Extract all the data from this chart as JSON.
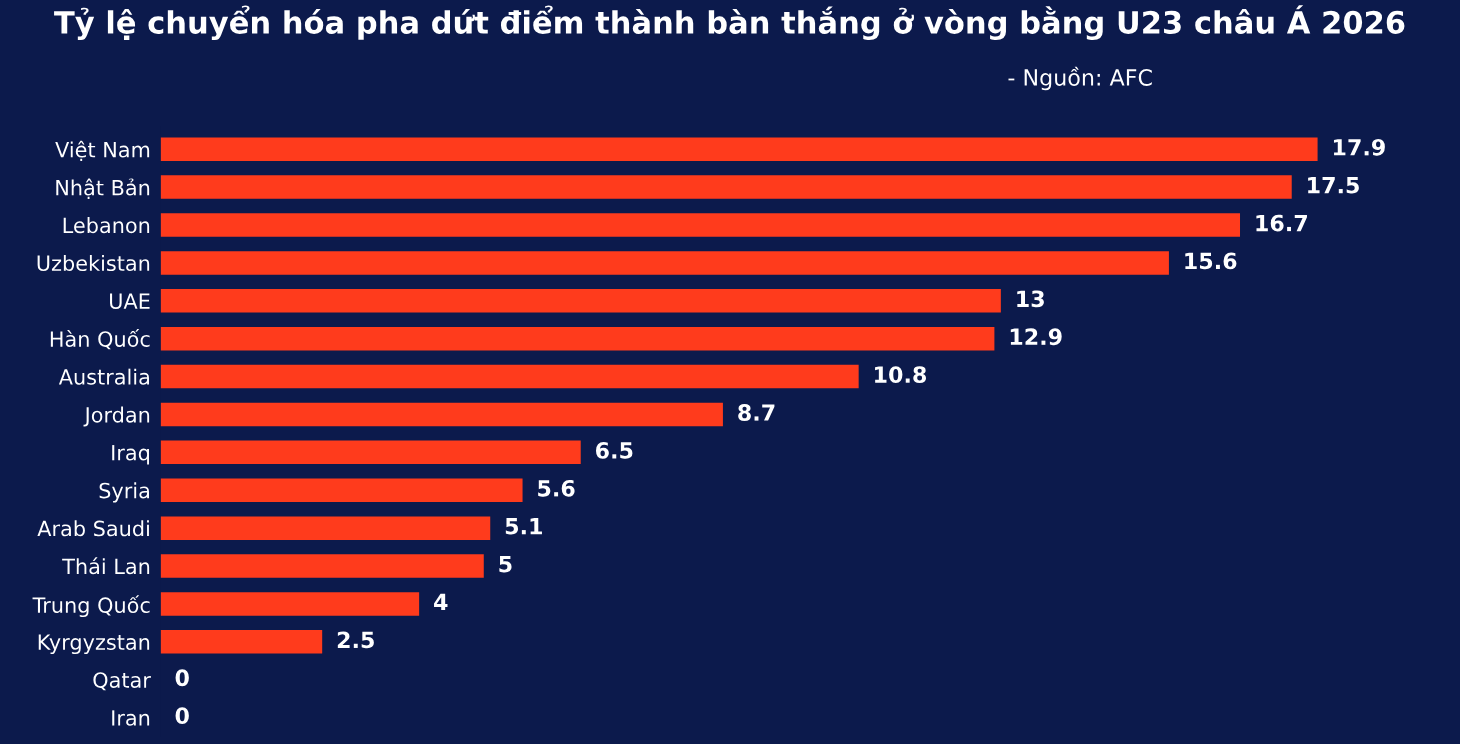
{
  "chart_data": {
    "type": "bar",
    "orientation": "horizontal",
    "title": "Tỷ lệ chuyển hóa pha dứt điểm thành bàn thắng ở vòng bằng U23 châu Á 2026",
    "annotations": [
      "- Nguồn: AFC"
    ],
    "categories": [
      "Việt Nam",
      "Nhật Bản",
      "Lebanon",
      "Uzbekistan",
      "UAE",
      "Hàn Quốc",
      "Australia",
      "Jordan",
      "Iraq",
      "Syria",
      "Arab Saudi",
      "Thái Lan",
      "Trung Quốc",
      "Kyrgyzstan",
      "Qatar",
      "Iran"
    ],
    "values": [
      17.9,
      17.5,
      16.7,
      15.6,
      13,
      12.9,
      10.8,
      8.7,
      6.5,
      5.6,
      5.1,
      5,
      4,
      2.5,
      0,
      0
    ],
    "color": "#ff3b1c",
    "data_labels": true,
    "grid": false
  }
}
